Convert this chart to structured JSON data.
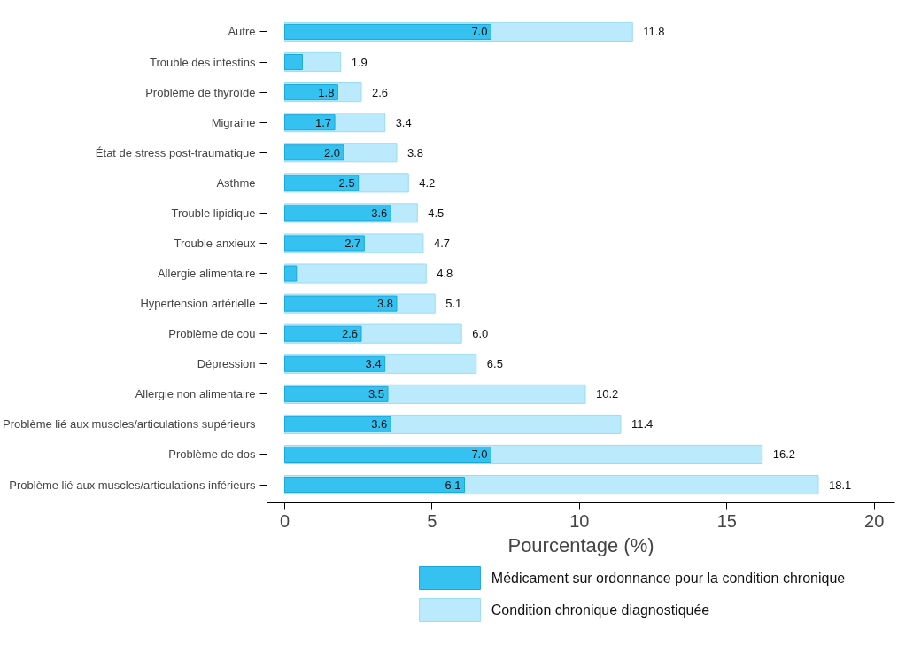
{
  "chart_data": {
    "type": "bar",
    "orientation": "horizontal",
    "xlabel": "Pourcentage (%)",
    "categories": [
      "Autre",
      "Trouble des intestins",
      "Problème de thyroïde",
      "Migraine",
      "État de stress post-traumatique",
      "Asthme",
      "Trouble lipidique",
      "Trouble anxieux",
      "Allergie alimentaire",
      "Hypertension artérielle",
      "Problème de cou",
      "Dépression",
      "Allergie non alimentaire",
      "Problème lié aux muscles/articulations supérieurs",
      "Problème de dos",
      "Problème lié aux muscles/articulations inférieurs"
    ],
    "series": [
      {
        "name": "Condition chronique diagnostiquée",
        "color": "#bbeafc",
        "values": [
          11.8,
          1.9,
          2.6,
          3.4,
          3.8,
          4.2,
          4.5,
          4.7,
          4.8,
          5.1,
          6.0,
          6.5,
          10.2,
          11.4,
          16.2,
          18.1
        ],
        "value_labels": [
          "11.8",
          "1.9",
          "2.6",
          "3.4",
          "3.8",
          "4.2",
          "4.5",
          "4.7",
          "4.8",
          "5.1",
          "6.0",
          "6.5",
          "10.2",
          "11.4",
          "16.2",
          "18.1"
        ]
      },
      {
        "name": "Médicament sur ordonnance pour la condition chronique",
        "color": "#35c2f0",
        "values": [
          7.0,
          0.6,
          1.8,
          1.7,
          2.0,
          2.5,
          3.6,
          2.7,
          0.4,
          3.8,
          2.6,
          3.4,
          3.5,
          3.6,
          7.0,
          6.1
        ],
        "value_labels": [
          "7.0",
          null,
          "1.8",
          "1.7",
          "2.0",
          "2.5",
          "3.6",
          "2.7",
          null,
          "3.8",
          "2.6",
          "3.4",
          "3.5",
          "3.6",
          "7.0",
          "6.1"
        ]
      }
    ],
    "xlim": [
      -0.6,
      20.7
    ],
    "xticks": [
      0,
      5,
      10,
      15,
      20
    ],
    "grid": false,
    "legend": "bottom"
  }
}
